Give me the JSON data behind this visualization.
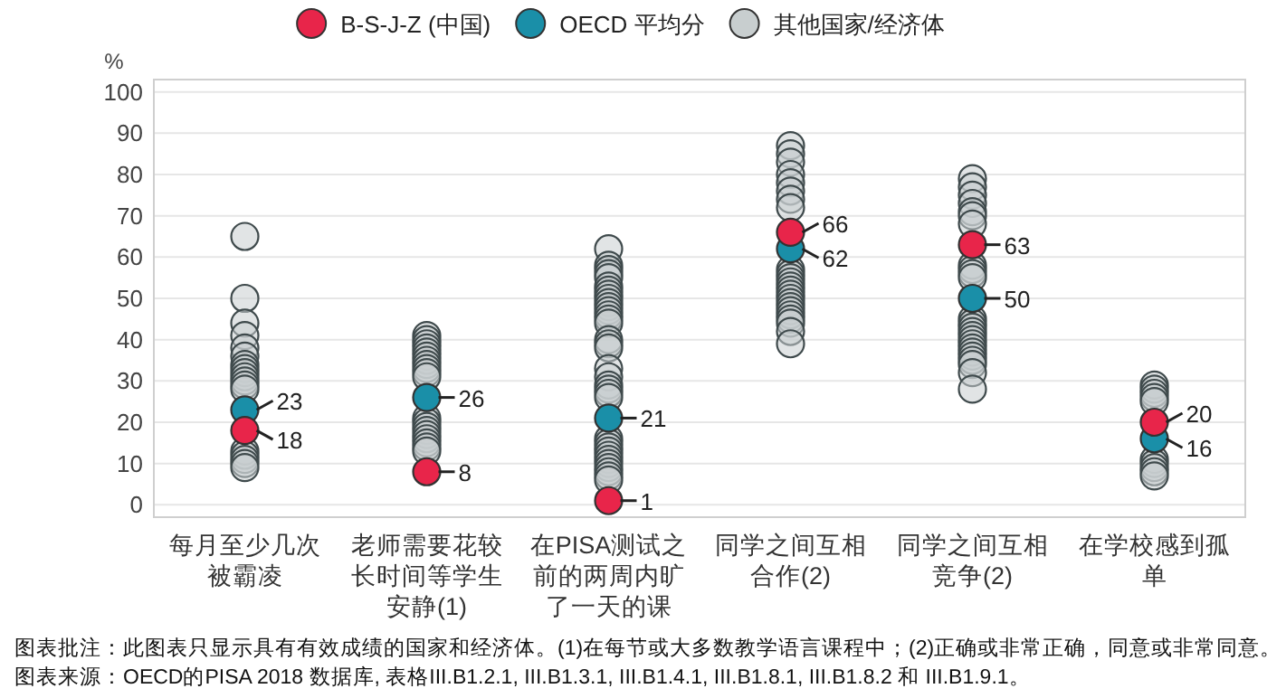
{
  "chart_data": {
    "type": "scatter",
    "ylabel": "%",
    "legend": "top",
    "grid": "y",
    "marker": "circle",
    "categories": [
      "每月至少几次被霸凌",
      "老师需要花较长时间等学生安静(1)",
      "在PISA测试之前的两周内旷了一天的课",
      "同学之间互相合作(2)",
      "同学之间互相竞争(2)",
      "在学校感到孤单"
    ],
    "ylim": [
      -3,
      103
    ],
    "yticks": [
      0,
      10,
      20,
      30,
      40,
      50,
      60,
      70,
      80,
      90,
      100
    ],
    "series": [
      {
        "name": "B-S-J-Z (中国)",
        "color": "#e8254a",
        "values": [
          18,
          8,
          1,
          66,
          63,
          20
        ],
        "value_labels": [
          "18",
          "8",
          "1",
          "66",
          "63",
          "20"
        ]
      },
      {
        "name": "OECD 平均分",
        "color": "#1a8fa8",
        "values": [
          23,
          26,
          21,
          62,
          50,
          16
        ],
        "value_labels": [
          "23",
          "26",
          "21",
          "62",
          "50",
          "16"
        ]
      },
      {
        "name": "其他国家/经济体",
        "color": "#c8cecf",
        "x": [
          "每月至少几次被霸凌",
          "每月至少几次被霸凌",
          "每月至少几次被霸凌",
          "每月至少几次被霸凌",
          "每月至少几次被霸凌",
          "每月至少几次被霸凌",
          "每月至少几次被霸凌",
          "每月至少几次被霸凌",
          "每月至少几次被霸凌",
          "每月至少几次被霸凌",
          "每月至少几次被霸凌",
          "每月至少几次被霸凌",
          "每月至少几次被霸凌",
          "每月至少几次被霸凌",
          "每月至少几次被霸凌",
          "每月至少几次被霸凌",
          "每月至少几次被霸凌",
          "每月至少几次被霸凌",
          "老师需要花较长时间等学生安静(1)",
          "老师需要花较长时间等学生安静(1)",
          "老师需要花较长时间等学生安静(1)",
          "老师需要花较长时间等学生安静(1)",
          "老师需要花较长时间等学生安静(1)",
          "老师需要花较长时间等学生安静(1)",
          "老师需要花较长时间等学生安静(1)",
          "老师需要花较长时间等学生安静(1)",
          "老师需要花较长时间等学生安静(1)",
          "老师需要花较长时间等学生安静(1)",
          "老师需要花较长时间等学生安静(1)",
          "老师需要花较长时间等学生安静(1)",
          "老师需要花较长时间等学生安静(1)",
          "老师需要花较长时间等学生安静(1)",
          "老师需要花较长时间等学生安静(1)",
          "老师需要花较长时间等学生安静(1)",
          "老师需要花较长时间等学生安静(1)",
          "老师需要花较长时间等学生安静(1)",
          "老师需要花较长时间等学生安静(1)",
          "老师需要花较长时间等学生安静(1)",
          "在PISA测试之前的两周内旷了一天的课",
          "在PISA测试之前的两周内旷了一天的课",
          "在PISA测试之前的两周内旷了一天的课",
          "在PISA测试之前的两周内旷了一天的课",
          "在PISA测试之前的两周内旷了一天的课",
          "在PISA测试之前的两周内旷了一天的课",
          "在PISA测试之前的两周内旷了一天的课",
          "在PISA测试之前的两周内旷了一天的课",
          "在PISA测试之前的两周内旷了一天的课",
          "在PISA测试之前的两周内旷了一天的课",
          "在PISA测试之前的两周内旷了一天的课",
          "在PISA测试之前的两周内旷了一天的课",
          "在PISA测试之前的两周内旷了一天的课",
          "在PISA测试之前的两周内旷了一天的课",
          "在PISA测试之前的两周内旷了一天的课",
          "在PISA测试之前的两周内旷了一天的课",
          "在PISA测试之前的两周内旷了一天的课",
          "在PISA测试之前的两周内旷了一天的课",
          "在PISA测试之前的两周内旷了一天的课",
          "在PISA测试之前的两周内旷了一天的课",
          "在PISA测试之前的两周内旷了一天的课",
          "在PISA测试之前的两周内旷了一天的课",
          "在PISA测试之前的两周内旷了一天的课",
          "在PISA测试之前的两周内旷了一天的课",
          "在PISA测试之前的两周内旷了一天的课",
          "在PISA测试之前的两周内旷了一天的课",
          "在PISA测试之前的两周内旷了一天的课",
          "在PISA测试之前的两周内旷了一天的课",
          "在PISA测试之前的两周内旷了一天的课",
          "在PISA测试之前的两周内旷了一天的课",
          "在PISA测试之前的两周内旷了一天的课",
          "在PISA测试之前的两周内旷了一天的课",
          "在PISA测试之前的两周内旷了一天的课",
          "在PISA测试之前的两周内旷了一天的课",
          "在PISA测试之前的两周内旷了一天的课",
          "同学之间互相合作(2)",
          "同学之间互相合作(2)",
          "同学之间互相合作(2)",
          "同学之间互相合作(2)",
          "同学之间互相合作(2)",
          "同学之间互相合作(2)",
          "同学之间互相合作(2)",
          "同学之间互相合作(2)",
          "同学之间互相合作(2)",
          "同学之间互相合作(2)",
          "同学之间互相合作(2)",
          "同学之间互相合作(2)",
          "同学之间互相合作(2)",
          "同学之间互相合作(2)",
          "同学之间互相合作(2)",
          "同学之间互相合作(2)",
          "同学之间互相合作(2)",
          "同学之间互相合作(2)",
          "同学之间互相合作(2)",
          "同学之间互相合作(2)",
          "同学之间互相合作(2)",
          "同学之间互相合作(2)",
          "同学之间互相合作(2)",
          "同学之间互相合作(2)",
          "同学之间互相竞争(2)",
          "同学之间互相竞争(2)",
          "同学之间互相竞争(2)",
          "同学之间互相竞争(2)",
          "同学之间互相竞争(2)",
          "同学之间互相竞争(2)",
          "同学之间互相竞争(2)",
          "同学之间互相竞争(2)",
          "同学之间互相竞争(2)",
          "同学之间互相竞争(2)",
          "同学之间互相竞争(2)",
          "同学之间互相竞争(2)",
          "同学之间互相竞争(2)",
          "同学之间互相竞争(2)",
          "同学之间互相竞争(2)",
          "同学之间互相竞争(2)",
          "同学之间互相竞争(2)",
          "同学之间互相竞争(2)",
          "同学之间互相竞争(2)",
          "同学之间互相竞争(2)",
          "同学之间互相竞争(2)",
          "同学之间互相竞争(2)",
          "同学之间互相竞争(2)",
          "同学之间互相竞争(2)",
          "同学之间互相竞争(2)",
          "在学校感到孤单",
          "在学校感到孤单",
          "在学校感到孤单",
          "在学校感到孤单",
          "在学校感到孤单",
          "在学校感到孤单",
          "在学校感到孤单",
          "在学校感到孤单",
          "在学校感到孤单",
          "在学校感到孤单"
        ],
        "values": [
          65,
          50,
          44,
          41,
          38,
          36,
          34,
          33,
          32,
          31,
          30,
          29,
          28,
          13,
          12,
          11,
          10,
          9,
          41,
          40,
          39,
          38,
          37,
          36,
          35,
          34,
          33,
          32,
          31,
          21,
          20,
          19,
          18,
          17,
          16,
          15,
          14,
          13,
          62,
          58,
          57,
          56,
          55,
          53,
          52,
          51,
          50,
          49,
          48,
          47,
          46,
          45,
          44,
          40,
          39,
          38,
          33,
          31,
          29,
          28,
          27,
          26,
          16,
          15,
          14,
          13,
          12,
          11,
          10,
          9,
          8,
          7,
          6,
          87,
          85,
          83,
          80,
          78,
          76,
          74,
          72,
          57,
          56,
          55,
          54,
          53,
          52,
          51,
          50,
          49,
          48,
          47,
          46,
          45,
          44,
          42,
          39,
          79,
          77,
          75,
          73,
          71,
          70,
          68,
          58,
          57,
          56,
          55,
          45,
          44,
          43,
          42,
          41,
          40,
          39,
          38,
          37,
          36,
          35,
          34,
          32,
          28,
          29,
          28,
          27,
          26,
          25,
          11,
          10,
          9,
          8,
          7
        ]
      }
    ],
    "annotations": [
      "图表批注：此图表只显示具有有效成绩的国家和经济体。(1)在每节或大多数教学语言课程中；(2)正确或非常正确，同意或非常同意。",
      "图表来源：OECD的PISA 2018 数据库, 表格III.B1.2.1, III.B1.3.1, III.B1.4.1, III.B1.8.1, III.B1.8.2 和 III.B1.9.1。"
    ]
  }
}
